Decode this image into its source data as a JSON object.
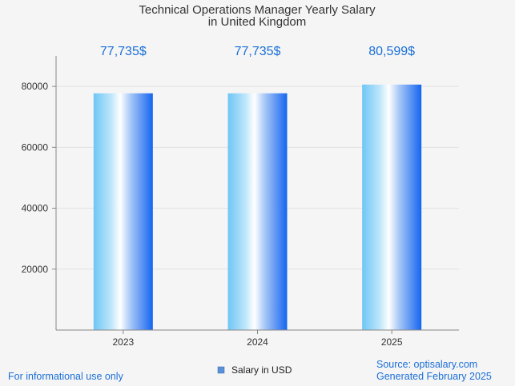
{
  "chart_data": {
    "type": "bar",
    "title_lines": [
      "Technical Operations Manager Yearly Salary",
      "in United Kingdom"
    ],
    "categories": [
      "2023",
      "2024",
      "2025"
    ],
    "series": [
      {
        "name": "Salary in USD",
        "values": [
          77735,
          77735,
          80599
        ]
      }
    ],
    "data_labels": [
      "77,735$",
      "77,735$",
      "80,599$"
    ],
    "y_ticks": [
      20000,
      40000,
      60000,
      80000
    ],
    "ylim": [
      0,
      90000
    ],
    "grid": true,
    "legend_position": "bottom-center"
  },
  "footer": {
    "left": "For informational use only",
    "source": "Source: optisalary.com",
    "generated": "Generated February 2025"
  },
  "colors": {
    "accent_text": "#1a6fd8",
    "bar_light": "#ffffff",
    "bar_mid": "#6ec6f5",
    "bar_dark": "#1565f0",
    "legend_swatch": "#5b8fd6",
    "grid": "#e2e2e2",
    "axis": "#888888"
  }
}
